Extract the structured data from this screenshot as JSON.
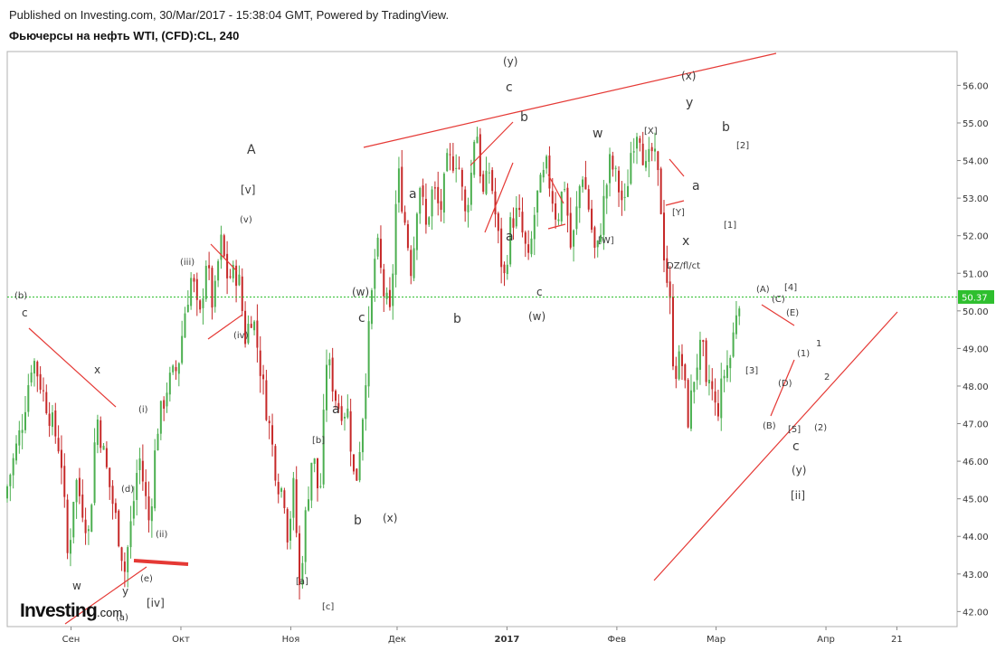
{
  "header": {
    "published": "Published on Investing.com, 30/Mar/2017 - 15:38:04 GMT, Powered by TradingView.",
    "title": "Фьючерсы на нефть WTI, (CFD):CL, 240"
  },
  "logo": {
    "name": "Investing",
    "suffix": ".com"
  },
  "colors": {
    "up": "#4caf50",
    "down": "#c62828",
    "trendline": "#e53935",
    "price_line": "#2ebf2e",
    "price_label_bg": "#2ebf2e"
  },
  "chart_data": {
    "type": "candlestick",
    "symbol": "CL",
    "timeframe": "240",
    "ylim": [
      41.6,
      56.9
    ],
    "y_ticks": [
      "42.00",
      "43.00",
      "44.00",
      "45.00",
      "46.00",
      "47.00",
      "48.00",
      "49.00",
      "50.00",
      "51.00",
      "52.00",
      "53.00",
      "54.00",
      "55.00",
      "56.00"
    ],
    "x_ticks": [
      {
        "label": "Сен",
        "t": 10,
        "bold": false
      },
      {
        "label": "Окт",
        "t": 41,
        "bold": false
      },
      {
        "label": "Ноя",
        "t": 72,
        "bold": false
      },
      {
        "label": "Дек",
        "t": 102,
        "bold": false
      },
      {
        "label": "2017",
        "t": 133,
        "bold": true
      },
      {
        "label": "Фев",
        "t": 164,
        "bold": false
      },
      {
        "label": "Мар",
        "t": 192,
        "bold": false
      },
      {
        "label": "Апр",
        "t": 223,
        "bold": false
      },
      {
        "label": "21",
        "t": 243,
        "bold": false
      }
    ],
    "t_range": [
      -8,
      260
    ],
    "last_price": "50.37",
    "price_path": [
      [
        -8,
        45.0
      ],
      [
        -3,
        47.0
      ],
      [
        0,
        48.8
      ],
      [
        4,
        47.5
      ],
      [
        8,
        46.2
      ],
      [
        10,
        43.3
      ],
      [
        12,
        45.6
      ],
      [
        16,
        44.0
      ],
      [
        18,
        47.3
      ],
      [
        21,
        45.7
      ],
      [
        24,
        44.2
      ],
      [
        26,
        43.1
      ],
      [
        28,
        44.5
      ],
      [
        30,
        46.2
      ],
      [
        33,
        44.3
      ],
      [
        35,
        46.8
      ],
      [
        38,
        48.0
      ],
      [
        41,
        48.5
      ],
      [
        43,
        50.0
      ],
      [
        45,
        51.0
      ],
      [
        47,
        49.6
      ],
      [
        49,
        51.4
      ],
      [
        51,
        50.0
      ],
      [
        53,
        51.9
      ],
      [
        55,
        50.9
      ],
      [
        58,
        51.0
      ],
      [
        60,
        49.3
      ],
      [
        62,
        50.0
      ],
      [
        65,
        48.0
      ],
      [
        67,
        46.8
      ],
      [
        69,
        45.5
      ],
      [
        71,
        45.1
      ],
      [
        72,
        44.0
      ],
      [
        74,
        45.6
      ],
      [
        75,
        42.3
      ],
      [
        77,
        44.5
      ],
      [
        79,
        46.3
      ],
      [
        81,
        44.9
      ],
      [
        83,
        48.8
      ],
      [
        86,
        47.5
      ],
      [
        89,
        47.3
      ],
      [
        91,
        45.2
      ],
      [
        93,
        47.1
      ],
      [
        95,
        49.6
      ],
      [
        97,
        51.9
      ],
      [
        99,
        50.5
      ],
      [
        101,
        49.8
      ],
      [
        103,
        53.8
      ],
      [
        105,
        52.4
      ],
      [
        107,
        51.0
      ],
      [
        109,
        53.6
      ],
      [
        111,
        52.2
      ],
      [
        113,
        53.3
      ],
      [
        115,
        52.6
      ],
      [
        117,
        53.9
      ],
      [
        120,
        54.1
      ],
      [
        122,
        52.5
      ],
      [
        124,
        53.8
      ],
      [
        125,
        55.2
      ],
      [
        127,
        53.0
      ],
      [
        129,
        53.8
      ],
      [
        131,
        52.2
      ],
      [
        133,
        50.8
      ],
      [
        135,
        52.4
      ],
      [
        137,
        52.6
      ],
      [
        140,
        51.2
      ],
      [
        142,
        52.9
      ],
      [
        145,
        53.8
      ],
      [
        148,
        52.4
      ],
      [
        150,
        53.5
      ],
      [
        152,
        51.5
      ],
      [
        155,
        53.8
      ],
      [
        157,
        52.7
      ],
      [
        159,
        51.3
      ],
      [
        161,
        52.8
      ],
      [
        163,
        54.0
      ],
      [
        165,
        53.4
      ],
      [
        167,
        52.7
      ],
      [
        169,
        54.4
      ],
      [
        171,
        55.0
      ],
      [
        173,
        53.7
      ],
      [
        175,
        54.3
      ],
      [
        177,
        53.2
      ],
      [
        178,
        51.7
      ],
      [
        180,
        50.0
      ],
      [
        181,
        48.3
      ],
      [
        183,
        48.8
      ],
      [
        185,
        47.1
      ],
      [
        187,
        48.5
      ],
      [
        189,
        49.1
      ],
      [
        190,
        47.8
      ],
      [
        191,
        48.2
      ],
      [
        193,
        47.2
      ],
      [
        195,
        48.3
      ],
      [
        197,
        48.8
      ],
      [
        199,
        50.4
      ]
    ]
  },
  "annotations": {
    "a1": "(b)",
    "a2": "c",
    "a3": "x",
    "a4": "w",
    "a5": "y",
    "a6": "(e)",
    "a7": "[iv]",
    "a8": "(a)",
    "a9": "(d)",
    "a10": "(i)",
    "a11": "(ii)",
    "a12": "(iii)",
    "a13": "(iv)",
    "a14": "(v)",
    "a15": "[v]",
    "a16": "A",
    "a17": "(w)",
    "a18": "c",
    "a19": "a",
    "a20": "[b]",
    "a21": "b",
    "a22": "[a]",
    "a23": "[c]",
    "a24": "(x)",
    "a25": "a",
    "a26": "b",
    "a27": "(y)",
    "a28": "c",
    "a29": "b",
    "a30": "a",
    "a31": "c",
    "a32": "(w)",
    "a33": "w",
    "a34": "[X]",
    "a35": "[W]",
    "a36": "(x)",
    "a37": "y",
    "a38": "a",
    "a39": "[Y]",
    "a40": "x",
    "a41": "DZ/fl/ct",
    "a42": "b",
    "a43": "[2]",
    "a44": "[1]",
    "a45": "(A)",
    "a46": "[4]",
    "a47": "(C)",
    "a48": "(E)",
    "a49": "[3]",
    "a50": "(1)",
    "a51": "(D)",
    "a52": "(B)",
    "a53": "[5]",
    "a54": "(2)",
    "a55": "c",
    "a56": "(y)",
    "a57": "[ii]",
    "a58": "1",
    "a59": "2"
  }
}
